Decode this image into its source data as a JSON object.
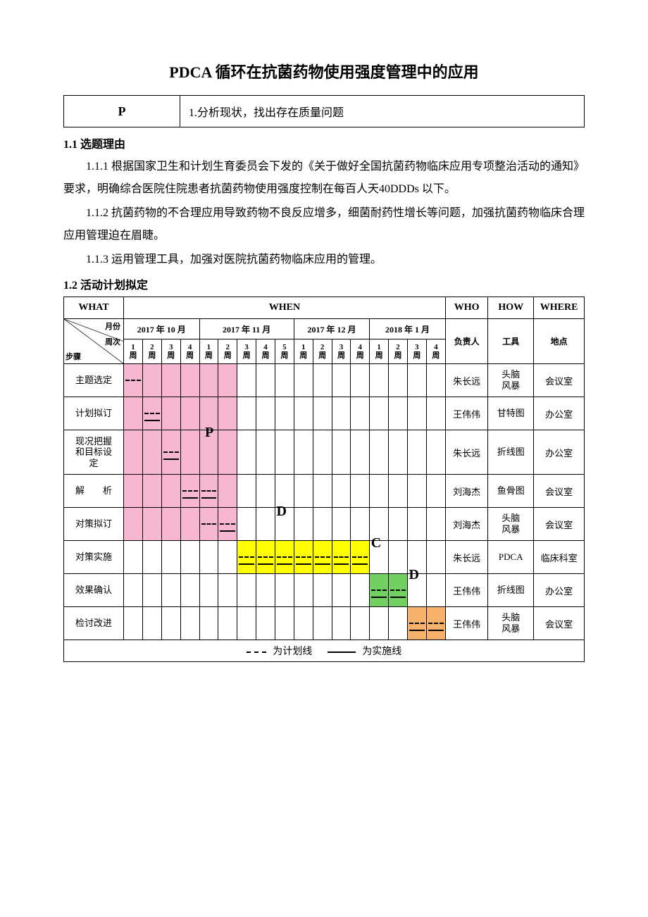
{
  "title": "PDCA 循环在抗菌药物使用强度管理中的应用",
  "p_header": {
    "letter": "P",
    "text": "1.分析现状，找出存在质量问题"
  },
  "section_1_1": "1.1 选题理由",
  "para_1_1_1": "1.1.1 根据国家卫生和计划生育委员会下发的《关于做好全国抗菌药物临床应用专项整治活动的通知》要求，明确综合医院住院患者抗菌药物使用强度控制在每百人天40DDDs 以下。",
  "para_1_1_2": "1.1.2 抗菌药物的不合理应用导致药物不良反应增多，细菌耐药性增长等问题，加强抗菌药物临床合理应用管理迫在眉睫。",
  "para_1_1_3": "1.1.3 运用管理工具，加强对医院抗菌药物临床应用的管理。",
  "section_1_2": "1.2 活动计划拟定",
  "gantt": {
    "header1": {
      "what": "WHAT",
      "when": "WHEN",
      "who": "WHO",
      "how": "HOW",
      "where": "WHERE"
    },
    "diag_labels": {
      "top": "月份",
      "mid": "周次",
      "bot": "步骤"
    },
    "months": [
      "2017 年 10 月",
      "2017 年 11 月",
      "2017 年 12 月",
      "2018 年 1 月"
    ],
    "month_weeks": [
      4,
      5,
      4,
      4
    ],
    "week_label_suffix": "周",
    "who_label": "负责人",
    "how_label": "工具",
    "where_label": "地点",
    "phase_labels": {
      "P": "P",
      "D": "D",
      "C": "C",
      "D2": "D"
    },
    "rows": [
      {
        "step": "主题选定",
        "who": "朱长远",
        "how": "头脑\n风暴",
        "where": "会议室",
        "cells": [
          {
            "c": "pink",
            "p": 1,
            "a": 0
          },
          {
            "c": "pink"
          },
          {
            "c": "pink"
          },
          {
            "c": "pink"
          },
          {
            "c": "pink"
          },
          {
            "c": "pink"
          },
          {},
          {},
          {},
          {},
          {},
          {},
          {},
          {},
          {},
          {},
          {}
        ]
      },
      {
        "step": "计划拟订",
        "who": "王伟伟",
        "how": "甘特图",
        "where": "办公室",
        "cells": [
          {
            "c": "pink"
          },
          {
            "c": "pink",
            "p": 1,
            "a": 1
          },
          {
            "c": "pink"
          },
          {
            "c": "pink"
          },
          {
            "c": "pink"
          },
          {
            "c": "pink"
          },
          {},
          {},
          {},
          {},
          {},
          {},
          {},
          {},
          {},
          {},
          {}
        ]
      },
      {
        "step": "现况把握\n和目标设\n定",
        "who": "朱长远",
        "how": "折线图",
        "where": "办公室",
        "tall": 1,
        "cells": [
          {
            "c": "pink"
          },
          {
            "c": "pink"
          },
          {
            "c": "pink",
            "p": 1,
            "a": 1
          },
          {
            "c": "pink"
          },
          {
            "c": "pink"
          },
          {
            "c": "pink"
          },
          {},
          {},
          {},
          {},
          {},
          {},
          {},
          {},
          {},
          {},
          {}
        ]
      },
      {
        "step": "解　　析",
        "who": "刘海杰",
        "how": "鱼骨图",
        "where": "会议室",
        "cells": [
          {
            "c": "pink"
          },
          {
            "c": "pink"
          },
          {
            "c": "pink"
          },
          {
            "c": "pink",
            "p": 1,
            "a": 1
          },
          {
            "c": "pink",
            "p": 1,
            "a": 1
          },
          {
            "c": "pink"
          },
          {},
          {},
          {},
          {},
          {},
          {},
          {},
          {},
          {},
          {},
          {}
        ]
      },
      {
        "step": "对策拟订",
        "who": "刘海杰",
        "how": "头脑\n风暴",
        "where": "会议室",
        "cells": [
          {
            "c": "pink"
          },
          {
            "c": "pink"
          },
          {
            "c": "pink"
          },
          {
            "c": "pink"
          },
          {
            "c": "pink",
            "p": 1
          },
          {
            "c": "pink",
            "p": 1,
            "a": 1
          },
          {},
          {},
          {},
          {},
          {},
          {},
          {},
          {},
          {},
          {},
          {}
        ]
      },
      {
        "step": "对策实施",
        "who": "朱长远",
        "how": "PDCA",
        "where": "临床科室",
        "cells": [
          {},
          {},
          {},
          {},
          {},
          {},
          {
            "c": "yellow",
            "p": 1,
            "a": 1
          },
          {
            "c": "yellow",
            "p": 1,
            "a": 1
          },
          {
            "c": "yellow",
            "p": 1,
            "a": 1
          },
          {
            "c": "yellow",
            "p": 1,
            "a": 1
          },
          {
            "c": "yellow",
            "p": 1,
            "a": 1
          },
          {
            "c": "yellow",
            "p": 1,
            "a": 1
          },
          {
            "c": "yellow",
            "p": 1,
            "a": 1
          },
          {},
          {},
          {},
          {}
        ]
      },
      {
        "step": "效果确认",
        "who": "王伟伟",
        "how": "折线图",
        "where": "办公室",
        "cells": [
          {},
          {},
          {},
          {},
          {},
          {},
          {},
          {},
          {},
          {},
          {},
          {},
          {},
          {
            "c": "green",
            "p": 1,
            "a": 1
          },
          {
            "c": "green",
            "p": 1,
            "a": 1
          },
          {},
          {}
        ]
      },
      {
        "step": "检讨改进",
        "who": "王伟伟",
        "how": "头脑\n风暴",
        "where": "会议室",
        "cells": [
          {},
          {},
          {},
          {},
          {},
          {},
          {},
          {},
          {},
          {},
          {},
          {},
          {},
          {},
          {},
          {
            "c": "orange",
            "p": 1,
            "a": 1
          },
          {
            "c": "orange",
            "p": 1,
            "a": 1
          }
        ]
      }
    ],
    "legend": {
      "plan": "为计划线",
      "act": "为实施线"
    }
  },
  "colors": {
    "pink": "#f7b6d2",
    "yellow": "#ffff00",
    "green": "#70d060",
    "orange": "#f6b26b",
    "border": "#000000",
    "background": "#ffffff",
    "text": "#000000"
  }
}
